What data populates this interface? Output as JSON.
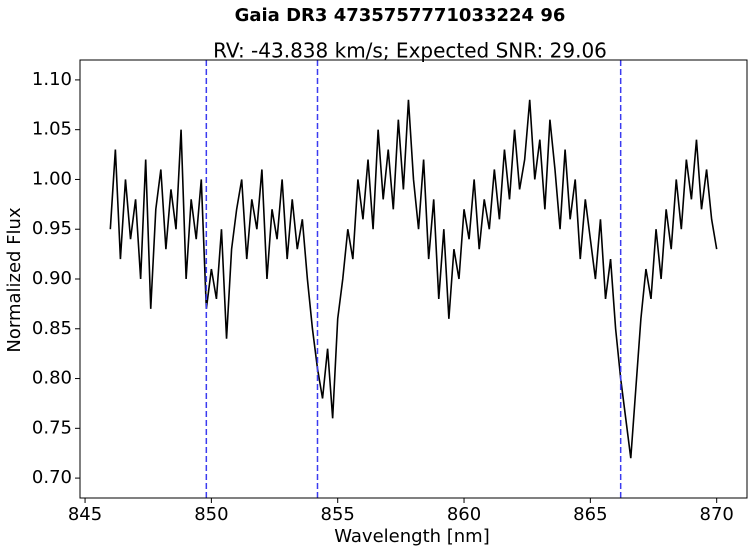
{
  "chart_data": {
    "type": "line",
    "title": "Gaia DR3 4735757771033224 96",
    "subtitle": "RV: -43.838 km/s; Expected SNR: 29.06",
    "x_label": "Wavelength [nm]",
    "y_label": "Normalized Flux",
    "x": [
      846.0,
      846.2,
      846.4,
      846.6,
      846.8,
      847.0,
      847.2,
      847.4,
      847.6,
      847.8,
      848.0,
      848.2,
      848.4,
      848.6,
      848.8,
      849.0,
      849.2,
      849.4,
      849.6,
      849.8,
      850.0,
      850.2,
      850.4,
      850.6,
      850.8,
      851.0,
      851.2,
      851.4,
      851.6,
      851.8,
      852.0,
      852.2,
      852.4,
      852.6,
      852.8,
      853.0,
      853.2,
      853.4,
      853.6,
      853.8,
      854.0,
      854.2,
      854.4,
      854.6,
      854.8,
      855.0,
      855.2,
      855.4,
      855.6,
      855.8,
      856.0,
      856.2,
      856.4,
      856.6,
      856.8,
      857.0,
      857.2,
      857.4,
      857.6,
      857.8,
      858.0,
      858.2,
      858.4,
      858.6,
      858.8,
      859.0,
      859.2,
      859.4,
      859.6,
      859.8,
      860.0,
      860.2,
      860.4,
      860.6,
      860.8,
      861.0,
      861.2,
      861.4,
      861.6,
      861.8,
      862.0,
      862.2,
      862.4,
      862.6,
      862.8,
      863.0,
      863.2,
      863.4,
      863.6,
      863.8,
      864.0,
      864.2,
      864.4,
      864.6,
      864.8,
      865.0,
      865.2,
      865.4,
      865.6,
      865.8,
      866.0,
      866.2,
      866.4,
      866.6,
      866.8,
      867.0,
      867.2,
      867.4,
      867.6,
      867.8,
      868.0,
      868.2,
      868.4,
      868.6,
      868.8,
      869.0,
      869.2,
      869.4,
      869.6,
      869.8,
      870.0
    ],
    "series": [
      {
        "color": "#000000",
        "values": [
          0.95,
          1.03,
          0.92,
          1.0,
          0.94,
          0.98,
          0.9,
          1.02,
          0.87,
          0.97,
          1.01,
          0.93,
          0.99,
          0.95,
          1.05,
          0.9,
          0.98,
          0.94,
          1.0,
          0.87,
          0.91,
          0.88,
          0.95,
          0.84,
          0.93,
          0.97,
          1.0,
          0.92,
          0.98,
          0.95,
          1.01,
          0.9,
          0.97,
          0.94,
          1.0,
          0.92,
          0.98,
          0.93,
          0.96,
          0.9,
          0.85,
          0.81,
          0.78,
          0.83,
          0.76,
          0.86,
          0.9,
          0.95,
          0.92,
          1.0,
          0.96,
          1.02,
          0.95,
          1.05,
          0.98,
          1.03,
          0.97,
          1.06,
          0.99,
          1.08,
          1.0,
          0.95,
          1.02,
          0.92,
          0.98,
          0.88,
          0.95,
          0.86,
          0.93,
          0.9,
          0.97,
          0.94,
          1.0,
          0.93,
          0.98,
          0.95,
          1.01,
          0.96,
          1.03,
          0.98,
          1.05,
          0.99,
          1.02,
          1.08,
          1.0,
          1.04,
          0.97,
          1.06,
          1.01,
          0.95,
          1.03,
          0.96,
          1.0,
          0.92,
          0.98,
          0.94,
          0.9,
          0.96,
          0.88,
          0.92,
          0.85,
          0.8,
          0.76,
          0.72,
          0.79,
          0.86,
          0.91,
          0.88,
          0.95,
          0.9,
          0.97,
          0.93,
          1.0,
          0.95,
          1.02,
          0.98,
          1.04,
          0.97,
          1.01,
          0.96,
          0.93
        ]
      }
    ],
    "vlines": [
      849.8,
      854.2,
      866.2
    ],
    "vline_color": "#3b3bf0",
    "xlim": [
      844.8,
      871.2
    ],
    "ylim": [
      0.68,
      1.12
    ],
    "xticks": [
      845,
      850,
      855,
      860,
      865,
      870
    ],
    "yticks": [
      {
        "value": 0.7,
        "label": "0.70"
      },
      {
        "value": 0.75,
        "label": "0.75"
      },
      {
        "value": 0.8,
        "label": "0.80"
      },
      {
        "value": 0.85,
        "label": "0.85"
      },
      {
        "value": 0.9,
        "label": "0.90"
      },
      {
        "value": 0.95,
        "label": "0.95"
      },
      {
        "value": 1.0,
        "label": "1.00"
      },
      {
        "value": 1.05,
        "label": "1.05"
      },
      {
        "value": 1.1,
        "label": "1.10"
      }
    ]
  }
}
